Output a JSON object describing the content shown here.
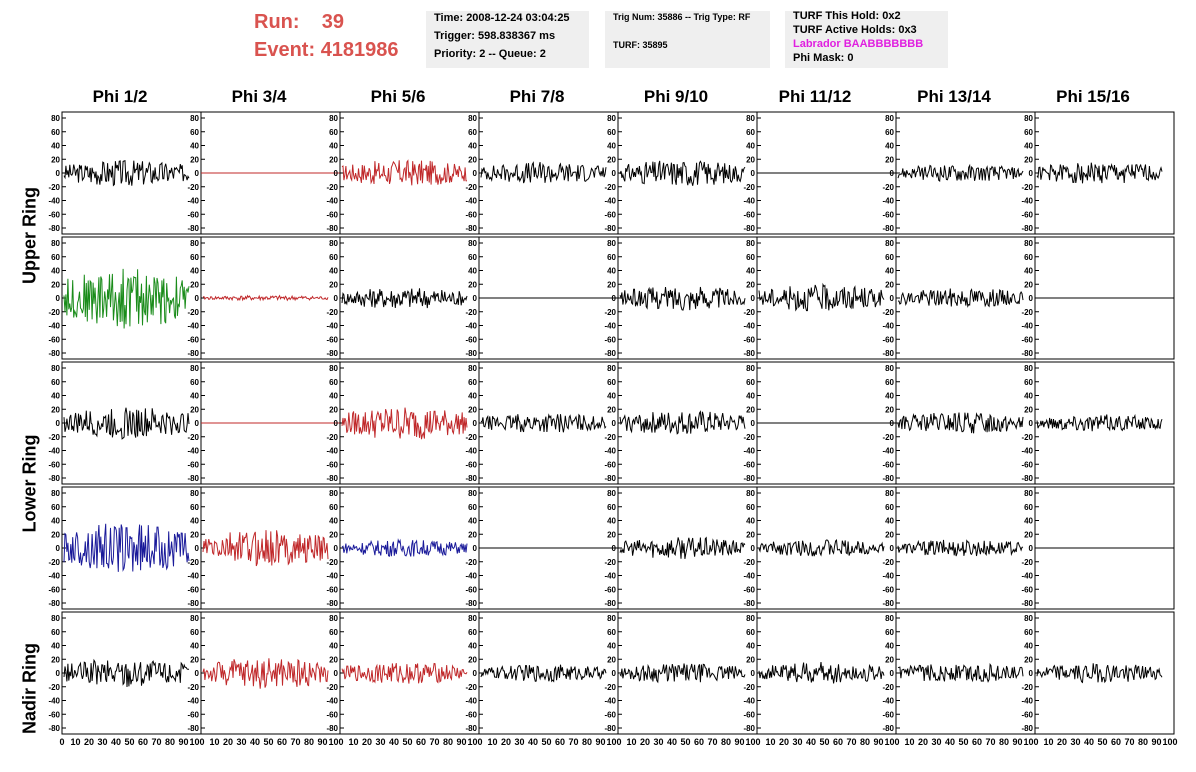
{
  "header": {
    "run_label": "Run:",
    "run_value": "39",
    "event_label": "Event:",
    "event_value": "4181986",
    "time_line": "Time: 2008-12-24 03:04:25",
    "trigger_line": "Trigger: 598.838367 ms",
    "priority_line": "Priority: 2 -- Queue: 2",
    "trig_num_line": "Trig Num: 35886 -- Trig Type: RF",
    "turf_line": "TURF: 35895",
    "turf_hold_line": "TURF This Hold: 0x2",
    "turf_active_line": "TURF Active Holds: 0x3",
    "labrador_line": "Labrador BAABBBBBBB",
    "phi_mask_line": "Phi Mask: 0",
    "labrador_color": "#e020e0",
    "run_color": "#d9534f"
  },
  "columns": [
    "Phi 1/2",
    "Phi 3/4",
    "Phi 5/6",
    "Phi 7/8",
    "Phi 9/10",
    "Phi 11/12",
    "Phi 13/14",
    "Phi 15/16"
  ],
  "row_labels": [
    "Upper Ring",
    "Lower Ring",
    "Nadir Ring"
  ],
  "y_ticks": [
    80,
    60,
    40,
    20,
    0,
    -20,
    -40,
    -60,
    -80
  ],
  "x_ticks": [
    0,
    10,
    20,
    30,
    40,
    50,
    60,
    70,
    80,
    90,
    100
  ],
  "colors": {
    "black": "#000000",
    "red": "#c0282a",
    "green": "#1a8c1a",
    "blue": "#1a1a9a"
  },
  "traces": [
    [
      "black:22",
      "red:flat",
      "red:22",
      "black:18",
      "black:22",
      "black:flat",
      "black:14",
      "black:18"
    ],
    [
      "green:50",
      "red:4",
      "black:18",
      "black:flat",
      "black:20",
      "black:22",
      "black:16",
      "black:flat"
    ],
    [
      "black:26",
      "red:flat",
      "red:28",
      "black:16",
      "black:20",
      "black:flat",
      "black:18",
      "black:14"
    ],
    [
      "blue:42",
      "red:30",
      "blue:14",
      "black:flat",
      "black:18",
      "black:14",
      "black:14",
      "black:flat"
    ],
    [
      "black:24",
      "red:26",
      "red:18",
      "black:14",
      "black:16",
      "black:18",
      "black:16",
      "black:16"
    ]
  ]
}
